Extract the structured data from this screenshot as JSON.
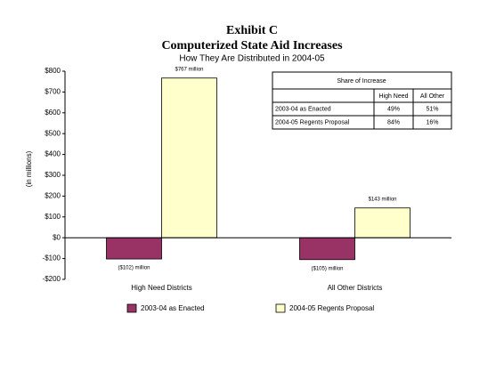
{
  "chart_data": {
    "type": "bar",
    "title": "Exhibit C",
    "subtitle": "Computerized State Aid Increases",
    "note": "How They Are Distributed in 2004-05",
    "y_label": "(in millions)",
    "categories": [
      "High Need Districts",
      "All Other Districts"
    ],
    "series": [
      {
        "name": "2003-04 as Enacted",
        "color": "#993366",
        "values": [
          -102,
          -105
        ],
        "value_labels": [
          "($102) million",
          "($105) million"
        ]
      },
      {
        "name": "2004-05 Regents Proposal",
        "color": "#ffffcc",
        "values": [
          767,
          143
        ],
        "value_labels": [
          "$767 million",
          "$143 million"
        ]
      }
    ],
    "ylim": [
      -200,
      800
    ],
    "yticks": [
      {
        "value": 800,
        "label": "$800"
      },
      {
        "value": 700,
        "label": "$700"
      },
      {
        "value": 600,
        "label": "$600"
      },
      {
        "value": 500,
        "label": "$500"
      },
      {
        "value": 400,
        "label": "$400"
      },
      {
        "value": 300,
        "label": "$300"
      },
      {
        "value": 200,
        "label": "$200"
      },
      {
        "value": 100,
        "label": "$100"
      },
      {
        "value": 0,
        "label": "$0"
      },
      {
        "value": -100,
        "label": "-$100"
      },
      {
        "value": -200,
        "label": "-$200"
      }
    ],
    "grid": false,
    "table": {
      "title": "Share of Increase",
      "columns": [
        "High Need",
        "All Other"
      ],
      "rows": [
        {
          "label": "2003-04 as Enacted",
          "values": [
            "49%",
            "51%"
          ]
        },
        {
          "label": "2004-05 Regents Proposal",
          "values": [
            "84%",
            "16%"
          ]
        }
      ]
    }
  }
}
